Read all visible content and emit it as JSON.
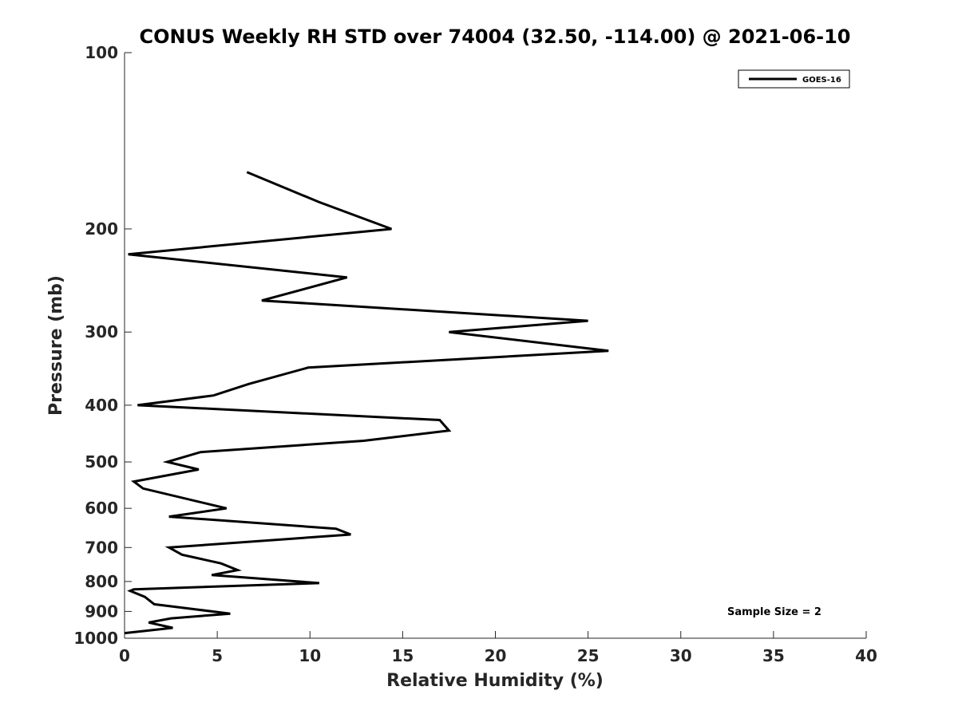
{
  "chart_data": {
    "type": "line",
    "title": "CONUS Weekly RH STD over 74004 (32.50, -114.00) @ 2021-06-10",
    "xlabel": "Relative Humidity (%)",
    "ylabel": "Pressure (mb)",
    "xlim": [
      0,
      40
    ],
    "ylim": [
      100,
      1000
    ],
    "y_scale": "log",
    "y_reversed": true,
    "x_ticks": [
      "0",
      "5",
      "10",
      "15",
      "20",
      "25",
      "30",
      "35",
      "40"
    ],
    "y_ticks": [
      "100",
      "200",
      "300",
      "400",
      "500",
      "600",
      "700",
      "800",
      "900",
      "1000"
    ],
    "grid": false,
    "legend_position": "top-right",
    "annotation": "Sample Size = 2",
    "series": [
      {
        "name": "GOES-16",
        "color": "#000000",
        "x": [
          6.6,
          10.5,
          14.4,
          0.2,
          12.0,
          7.4,
          25.0,
          17.5,
          26.1,
          9.9,
          6.7,
          4.8,
          0.7,
          17.0,
          17.5,
          12.9,
          4.1,
          2.3,
          4.0,
          0.5,
          1.0,
          5.5,
          2.4,
          11.4,
          12.2,
          2.4,
          3.1,
          5.2,
          6.1,
          4.7,
          10.5,
          0.5,
          0.3,
          1.1,
          1.6,
          5.7,
          2.5,
          1.3,
          2.6,
          0.0
        ],
        "y": [
          160,
          180,
          200,
          221,
          242,
          265,
          287,
          300,
          323,
          345,
          368,
          385,
          400,
          424,
          442,
          460,
          481,
          500,
          515,
          540,
          555,
          600,
          620,
          650,
          665,
          700,
          720,
          745,
          765,
          780,
          805,
          825,
          830,
          850,
          875,
          908,
          925,
          940,
          960,
          980
        ]
      }
    ]
  }
}
